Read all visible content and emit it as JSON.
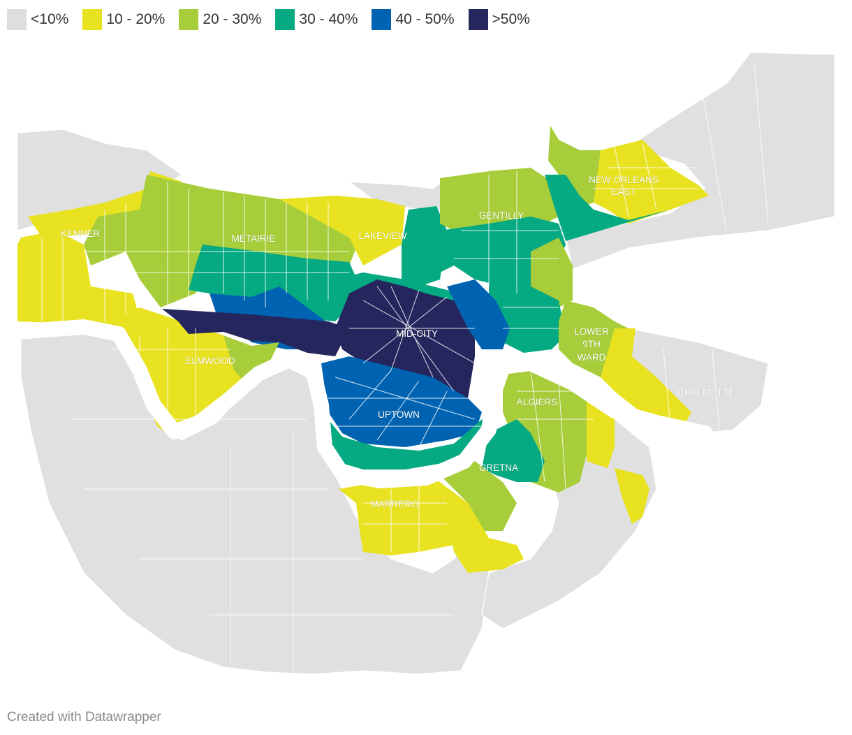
{
  "legend": [
    {
      "label": "<10%",
      "color": "#dedede"
    },
    {
      "label": "10 - 20%",
      "color": "#e8e221"
    },
    {
      "label": "20 - 30%",
      "color": "#a7ce3a"
    },
    {
      "label": "30 - 40%",
      "color": "#05a982"
    },
    {
      "label": "40 - 50%",
      "color": "#0063b1"
    },
    {
      "label": ">50%",
      "color": "#25265e"
    }
  ],
  "labels": {
    "kenner": "KENNER",
    "metairie": "METAIRIE",
    "lakeview": "LAKEVIEW",
    "gentilly": "GENTILLY",
    "new_orleans_east_1": "NEW ORLEANS",
    "new_orleans_east_2": "EAST",
    "lower_9th_1": "LOWER",
    "lower_9th_2": "9TH",
    "lower_9th_3": "WARD",
    "mid_city": "MID-CITY",
    "elmwood": "ELMWOOD",
    "uptown": "UPTOWN",
    "algiers": "ALGIERS",
    "chalmette": "CHALMETTE",
    "gretna": "GRETNA",
    "marrero": "MARRERO"
  },
  "credit": "Created with Datawrapper"
}
